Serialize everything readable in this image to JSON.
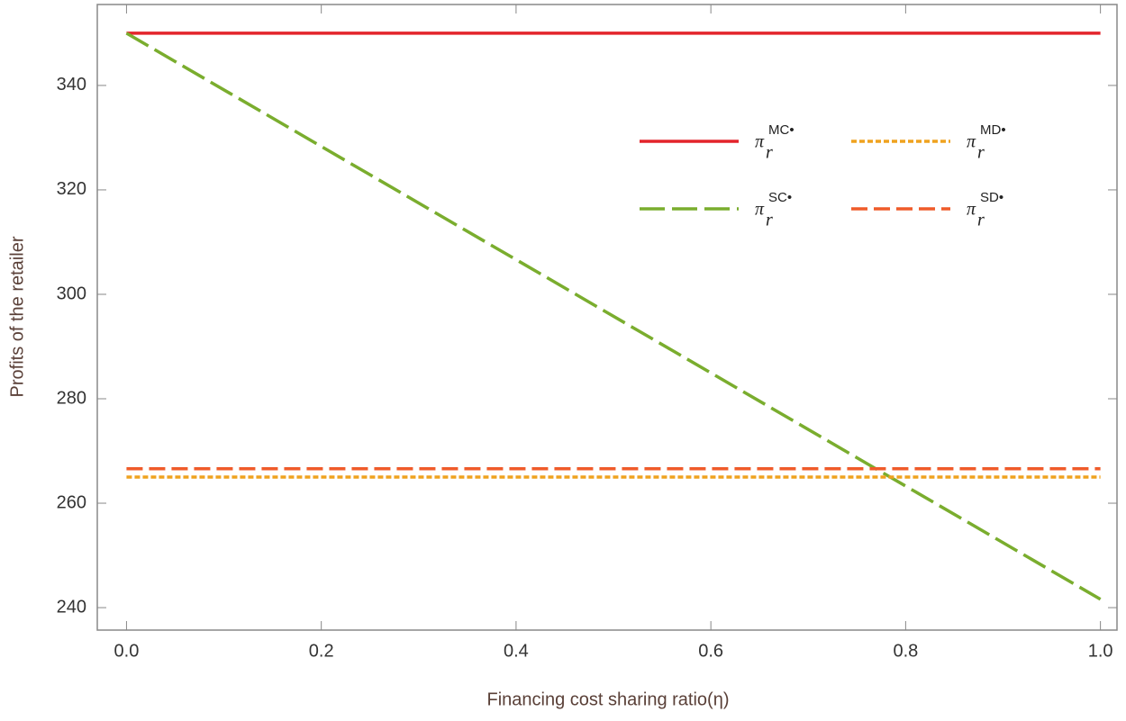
{
  "chart_data": {
    "type": "line",
    "x_label": "Financing cost sharing ratio(η)",
    "y_label": "Profits of the retailer",
    "x": [
      0,
      1
    ],
    "legend_symbol": "π",
    "legend_subscript": "r",
    "series": [
      {
        "name": "MC•",
        "color": "#e3242b",
        "dash": "solid",
        "values": [
          350,
          350
        ]
      },
      {
        "name": "MD•",
        "color": "#efa21f",
        "dash": "dotted",
        "values": [
          265,
          265
        ]
      },
      {
        "name": "SC•",
        "color": "#7aad2e",
        "dash": "long",
        "values": [
          350,
          241.6
        ]
      },
      {
        "name": "SD•",
        "color": "#ef5b2a",
        "dash": "dashed",
        "values": [
          266.6,
          266.6
        ]
      }
    ],
    "xlim": [
      -0.03,
      1.017
    ],
    "ylim": [
      235.7,
      355.5
    ],
    "xticks": [
      {
        "value": 0,
        "label": "0.0"
      },
      0.2,
      0.4,
      0.6,
      0.8,
      {
        "value": 1,
        "label": "1.0"
      }
    ],
    "yticks": [
      240,
      260,
      280,
      300,
      320,
      340
    ],
    "grid": false
  }
}
